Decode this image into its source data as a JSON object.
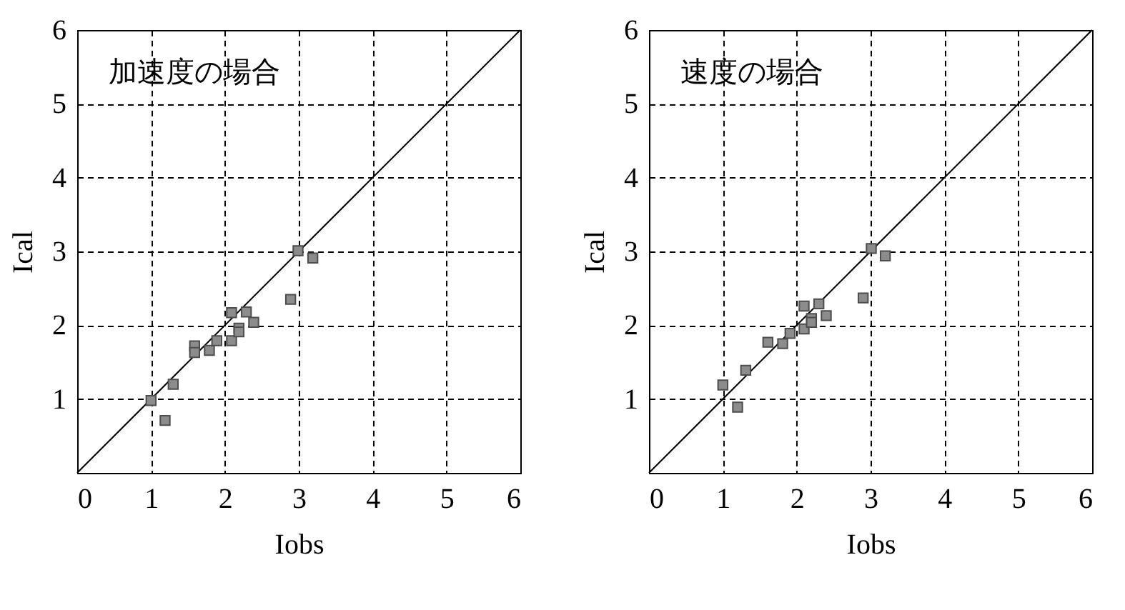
{
  "chart_data": [
    {
      "type": "scatter",
      "xlabel": "Iobs",
      "ylabel": "Ical",
      "annotations": [
        "加速度の場合"
      ],
      "xlim": [
        0,
        6
      ],
      "ylim": [
        0,
        6
      ],
      "xticks": [
        0,
        1,
        2,
        3,
        4,
        5,
        6
      ],
      "yticks": [
        1,
        2,
        3,
        4,
        5,
        6
      ],
      "grid": true,
      "series": [
        {
          "type": "line",
          "color": "#000000",
          "x": [
            0,
            6
          ],
          "values": [
            0,
            6
          ]
        },
        {
          "type": "scatter",
          "marker": "square",
          "color": "#8c8c8c",
          "x": [
            1.0,
            1.19,
            1.3,
            1.59,
            1.59,
            1.79,
            1.89,
            2.09,
            2.09,
            2.19,
            2.19,
            2.29,
            2.39,
            2.89,
            2.99,
            3.19
          ],
          "values": [
            0.98,
            0.71,
            1.2,
            1.72,
            1.63,
            1.66,
            1.79,
            2.17,
            1.79,
            1.96,
            1.91,
            2.18,
            2.04,
            2.35,
            3.01,
            2.91
          ]
        }
      ]
    },
    {
      "type": "scatter",
      "xlabel": "Iobs",
      "ylabel": "Ical",
      "annotations": [
        "速度の場合"
      ],
      "xlim": [
        0,
        6
      ],
      "ylim": [
        0,
        6
      ],
      "xticks": [
        0,
        1,
        2,
        3,
        4,
        5,
        6
      ],
      "yticks": [
        1,
        2,
        3,
        4,
        5,
        6
      ],
      "grid": true,
      "series": [
        {
          "type": "line",
          "color": "#000000",
          "x": [
            0,
            6
          ],
          "values": [
            0,
            6
          ]
        },
        {
          "type": "scatter",
          "marker": "square",
          "color": "#8c8c8c",
          "x": [
            1.0,
            1.2,
            1.31,
            1.61,
            1.81,
            1.91,
            2.1,
            2.1,
            2.2,
            2.2,
            2.3,
            2.4,
            2.9,
            3.01,
            3.2
          ],
          "values": [
            1.19,
            0.89,
            1.39,
            1.77,
            1.75,
            1.89,
            2.26,
            1.95,
            2.09,
            2.04,
            2.29,
            2.13,
            2.37,
            3.04,
            2.94
          ]
        }
      ]
    }
  ]
}
